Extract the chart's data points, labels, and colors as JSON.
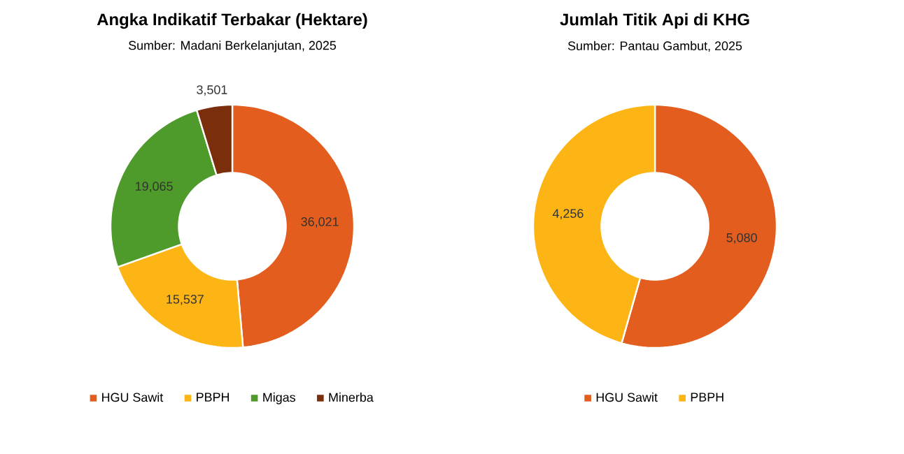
{
  "chart_data": [
    {
      "type": "donut",
      "title": "Angka Indikatif Terbakar (Hektare)",
      "subtitle": "Sumber: Madani Berkelanjutan, 2025",
      "categories": [
        "HGU Sawit",
        "PBPH",
        "Migas",
        "Minerba"
      ],
      "values": [
        36021,
        15537,
        19065,
        3501
      ],
      "colors": [
        "#e35d1e",
        "#fdb515",
        "#4e9a2a",
        "#7a2e0b"
      ],
      "value_labels": [
        "36,021",
        "15,537",
        "19,065",
        "3,501"
      ],
      "legend": "bottom"
    },
    {
      "type": "donut",
      "title": "Jumlah Titik Api di KHG",
      "subtitle": "Sumber: Pantau Gambut, 2025",
      "categories": [
        "HGU Sawit",
        "PBPH"
      ],
      "values": [
        5080,
        4256
      ],
      "colors": [
        "#e35d1e",
        "#fdb515"
      ],
      "value_labels": [
        "5,080",
        "4,256"
      ],
      "legend": "bottom"
    }
  ]
}
